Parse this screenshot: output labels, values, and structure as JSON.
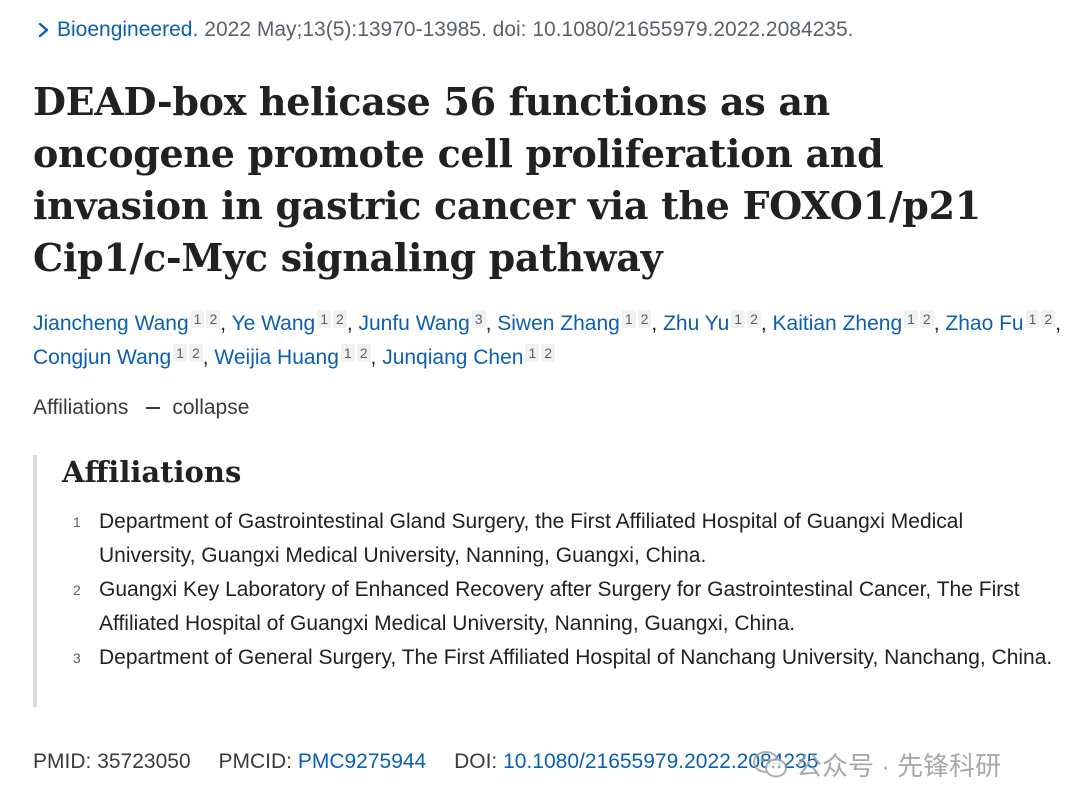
{
  "citation": {
    "journal": "Bioengineered.",
    "details": "2022 May;13(5):13970-13985. doi: 10.1080/21655979.2022.2084235."
  },
  "title": "DEAD-box helicase 56 functions as an oncogene promote cell proliferation and invasion in gastric cancer via the FOXO1/p21 Cip1/c-Myc signaling pathway",
  "authors": [
    {
      "name": "Jiancheng Wang",
      "affs": [
        "1",
        "2"
      ]
    },
    {
      "name": "Ye Wang",
      "affs": [
        "1",
        "2"
      ]
    },
    {
      "name": "Junfu Wang",
      "affs": [
        "3"
      ]
    },
    {
      "name": "Siwen Zhang",
      "affs": [
        "1",
        "2"
      ]
    },
    {
      "name": "Zhu Yu",
      "affs": [
        "1",
        "2"
      ]
    },
    {
      "name": "Kaitian Zheng",
      "affs": [
        "1",
        "2"
      ]
    },
    {
      "name": "Zhao Fu",
      "affs": [
        "1",
        "2"
      ]
    },
    {
      "name": "Congjun Wang",
      "affs": [
        "1",
        "2"
      ]
    },
    {
      "name": "Weijia Huang",
      "affs": [
        "1",
        "2"
      ]
    },
    {
      "name": "Junqiang Chen",
      "affs": [
        "1",
        "2"
      ]
    }
  ],
  "affiliations_toggle": {
    "label": "Affiliations",
    "action": "collapse"
  },
  "affiliations": {
    "heading": "Affiliations",
    "items": [
      {
        "num": "1",
        "text": "Department of Gastrointestinal Gland Surgery, the First Affiliated Hospital of Guangxi Medical University, Guangxi Medical University, Nanning, Guangxi, China."
      },
      {
        "num": "2",
        "text": "Guangxi Key Laboratory of Enhanced Recovery after Surgery for Gastrointestinal Cancer, The First Affiliated Hospital of Guangxi Medical University, Nanning, Guangxi, China."
      },
      {
        "num": "3",
        "text": "Department of General Surgery, The First Affiliated Hospital of Nanchang University, Nanchang, China."
      }
    ]
  },
  "identifiers": {
    "pmid_label": "PMID:",
    "pmid": "35723050",
    "pmcid_label": "PMCID:",
    "pmcid": "PMC9275944",
    "doi_label": "DOI:",
    "doi": "10.1080/21655979.2022.2084235"
  },
  "watermark": {
    "text": "公众号 · 先锋科研",
    "icon": "wechat-icon"
  },
  "colors": {
    "link": "#0b5fb3",
    "text": "#212121",
    "muted": "#5b616b"
  }
}
